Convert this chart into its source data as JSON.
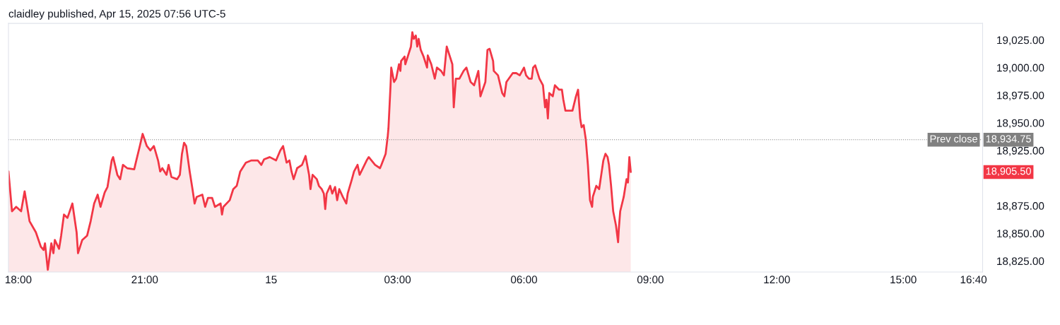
{
  "chart_data": {
    "type": "area",
    "title": "claidley published, Apr 15, 2025 07:56 UTC-5",
    "xlim": [
      "2025-04-14T17:46",
      "2025-04-15T16:53"
    ],
    "ylim": [
      18815,
      19040
    ],
    "xticks": [
      {
        "value": "2025-04-14T18:00",
        "label": "18:00"
      },
      {
        "value": "2025-04-14T21:00",
        "label": "21:00"
      },
      {
        "value": "2025-04-15T00:00",
        "label": "15"
      },
      {
        "value": "2025-04-15T03:00",
        "label": "03:00"
      },
      {
        "value": "2025-04-15T06:00",
        "label": "06:00"
      },
      {
        "value": "2025-04-15T09:00",
        "label": "09:00"
      },
      {
        "value": "2025-04-15T12:00",
        "label": "12:00"
      },
      {
        "value": "2025-04-15T15:00",
        "label": "15:00"
      },
      {
        "value": "2025-04-15T16:40",
        "label": "16:40"
      }
    ],
    "yticks": [
      {
        "value": 18825,
        "label": "18,825.00"
      },
      {
        "value": 18850,
        "label": "18,850.00"
      },
      {
        "value": 18875,
        "label": "18,875.00"
      },
      {
        "value": 18925,
        "label": "18,925.00"
      },
      {
        "value": 18950,
        "label": "18,950.00"
      },
      {
        "value": 18975,
        "label": "18,975.00"
      },
      {
        "value": 19000,
        "label": "19,000.00"
      },
      {
        "value": 19025,
        "label": "19,025.00"
      }
    ],
    "ref_lines": [
      {
        "axis": "y",
        "value": 18934.75,
        "label": "Prev close",
        "color": "#808080",
        "line_style": "dotted"
      }
    ],
    "annotations": [
      "18,934.75",
      "18,905.50"
    ],
    "grid": false,
    "legend": false,
    "series": [
      {
        "color": "#f23645",
        "x": [
          "2025-04-14T17:46",
          "2025-04-14T17:51",
          "2025-04-14T17:57",
          "2025-04-14T18:04",
          "2025-04-14T18:09",
          "2025-04-14T18:16",
          "2025-04-14T18:25",
          "2025-04-14T18:32",
          "2025-04-14T18:36",
          "2025-04-14T18:38",
          "2025-04-14T18:42",
          "2025-04-14T18:47",
          "2025-04-14T18:50",
          "2025-04-14T18:52",
          "2025-04-14T18:58",
          "2025-04-14T19:01",
          "2025-04-14T19:05",
          "2025-04-14T19:10",
          "2025-04-14T19:17",
          "2025-04-14T19:23",
          "2025-04-14T19:25",
          "2025-04-14T19:31",
          "2025-04-14T19:38",
          "2025-04-14T19:43",
          "2025-04-14T19:48",
          "2025-04-14T19:53",
          "2025-04-14T19:57",
          "2025-04-14T20:03",
          "2025-04-14T20:07",
          "2025-04-14T20:13",
          "2025-04-14T20:15",
          "2025-04-14T20:21",
          "2025-04-14T20:25",
          "2025-04-14T20:29",
          "2025-04-14T20:35",
          "2025-04-14T20:45",
          "2025-04-14T20:48",
          "2025-04-14T20:53",
          "2025-04-14T20:57",
          "2025-04-14T21:03",
          "2025-04-14T21:08",
          "2025-04-14T21:13",
          "2025-04-14T21:19",
          "2025-04-14T21:22",
          "2025-04-14T21:25",
          "2025-04-14T21:31",
          "2025-04-14T21:34",
          "2025-04-14T21:38",
          "2025-04-14T21:46",
          "2025-04-14T21:50",
          "2025-04-14T21:53",
          "2025-04-14T21:56",
          "2025-04-14T21:59",
          "2025-04-14T22:04",
          "2025-04-14T22:08",
          "2025-04-14T22:11",
          "2025-04-14T22:14",
          "2025-04-14T22:22",
          "2025-04-14T22:26",
          "2025-04-14T22:30",
          "2025-04-14T22:36",
          "2025-04-14T22:40",
          "2025-04-14T22:48",
          "2025-04-14T22:50",
          "2025-04-14T22:52",
          "2025-04-14T23:01",
          "2025-04-14T23:06",
          "2025-04-14T23:11",
          "2025-04-14T23:16",
          "2025-04-14T23:24",
          "2025-04-14T23:32",
          "2025-04-14T23:41",
          "2025-04-14T23:46",
          "2025-04-14T23:50",
          "2025-04-14T23:58",
          "2025-04-15T00:07",
          "2025-04-15T00:13",
          "2025-04-15T00:17",
          "2025-04-15T00:22",
          "2025-04-15T00:26",
          "2025-04-15T00:29",
          "2025-04-15T00:32",
          "2025-04-15T00:37",
          "2025-04-15T00:44",
          "2025-04-15T00:49",
          "2025-04-15T00:54",
          "2025-04-15T00:56",
          "2025-04-15T00:59",
          "2025-04-15T01:05",
          "2025-04-15T01:08",
          "2025-04-15T01:12",
          "2025-04-15T01:15",
          "2025-04-15T01:17",
          "2025-04-15T01:19",
          "2025-04-15T01:24",
          "2025-04-15T01:27",
          "2025-04-15T01:31",
          "2025-04-15T01:34",
          "2025-04-15T01:37",
          "2025-04-15T01:42",
          "2025-04-15T01:47",
          "2025-04-15T01:49",
          "2025-04-15T01:55",
          "2025-04-15T01:58",
          "2025-04-15T02:03",
          "2025-04-15T02:06",
          "2025-04-15T02:16",
          "2025-04-15T02:19",
          "2025-04-15T02:28",
          "2025-04-15T02:35",
          "2025-04-15T02:37",
          "2025-04-15T02:43",
          "2025-04-15T02:46",
          "2025-04-15T02:47",
          "2025-04-15T02:50",
          "2025-04-15T02:51",
          "2025-04-15T02:55",
          "2025-04-15T02:58",
          "2025-04-15T03:02",
          "2025-04-15T03:04",
          "2025-04-15T03:05",
          "2025-04-15T03:10",
          "2025-04-15T03:11",
          "2025-04-15T03:16",
          "2025-04-15T03:19",
          "2025-04-15T03:21",
          "2025-04-15T03:23",
          "2025-04-15T03:26",
          "2025-04-15T03:28",
          "2025-04-15T03:30",
          "2025-04-15T03:33",
          "2025-04-15T03:37",
          "2025-04-15T03:42",
          "2025-04-15T03:43",
          "2025-04-15T03:48",
          "2025-04-15T03:53",
          "2025-04-15T03:56",
          "2025-04-15T04:02",
          "2025-04-15T04:06",
          "2025-04-15T04:10",
          "2025-04-15T04:13",
          "2025-04-15T04:18",
          "2025-04-15T04:20",
          "2025-04-15T04:23",
          "2025-04-15T04:28",
          "2025-04-15T04:34",
          "2025-04-15T04:38",
          "2025-04-15T04:44",
          "2025-04-15T04:49",
          "2025-04-15T04:55",
          "2025-04-15T04:58",
          "2025-04-15T05:05",
          "2025-04-15T05:08",
          "2025-04-15T05:11",
          "2025-04-15T05:16",
          "2025-04-15T05:17",
          "2025-04-15T05:23",
          "2025-04-15T05:29",
          "2025-04-15T05:32",
          "2025-04-15T05:35",
          "2025-04-15T05:44",
          "2025-04-15T05:49",
          "2025-04-15T05:54",
          "2025-04-15T06:00",
          "2025-04-15T06:03",
          "2025-04-15T06:07",
          "2025-04-15T06:11",
          "2025-04-15T06:13",
          "2025-04-15T06:16",
          "2025-04-15T06:22",
          "2025-04-15T06:27",
          "2025-04-15T06:30",
          "2025-04-15T06:32",
          "2025-04-15T06:34",
          "2025-04-15T06:36",
          "2025-04-15T06:41",
          "2025-04-15T06:44",
          "2025-04-15T06:50",
          "2025-04-15T06:54",
          "2025-04-15T06:56",
          "2025-04-15T06:59",
          "2025-04-15T07:04",
          "2025-04-15T07:09",
          "2025-04-15T07:14",
          "2025-04-15T07:17",
          "2025-04-15T07:20",
          "2025-04-15T07:22",
          "2025-04-15T07:25",
          "2025-04-15T07:28",
          "2025-04-15T07:31",
          "2025-04-15T07:34",
          "2025-04-15T07:37",
          "2025-04-15T07:38",
          "2025-04-15T07:43",
          "2025-04-15T07:47",
          "2025-04-15T07:50",
          "2025-04-15T07:53",
          "2025-04-15T07:56",
          "2025-04-15T07:59",
          "2025-04-15T08:01",
          "2025-04-15T08:04",
          "2025-04-15T08:07",
          "2025-04-15T08:11",
          "2025-04-15T08:14",
          "2025-04-15T08:15",
          "2025-04-15T08:17",
          "2025-04-15T08:22",
          "2025-04-15T08:26",
          "2025-04-15T08:28",
          "2025-04-15T08:30",
          "2025-04-15T08:32"
        ],
        "values": [
          18906,
          18870,
          18874,
          18870,
          18888,
          18861,
          18851,
          18838,
          18835,
          18841,
          18817,
          18841,
          18832,
          18844,
          18836,
          18848,
          18867,
          18864,
          18877,
          18851,
          18832,
          18844,
          18848,
          18861,
          18877,
          18885,
          18874,
          18887,
          18892,
          18916,
          18919,
          18903,
          18899,
          18912,
          18909,
          18908,
          18916,
          18929,
          18940,
          18929,
          18925,
          18929,
          18916,
          18906,
          18909,
          18903,
          18912,
          18901,
          18899,
          18903,
          18922,
          18932,
          18929,
          18906,
          18890,
          18877,
          18883,
          18885,
          18874,
          18882,
          18882,
          18874,
          18877,
          18867,
          18874,
          18880,
          18890,
          18893,
          18906,
          18914,
          18916,
          18916,
          18912,
          18917,
          18919,
          18916,
          18925,
          18929,
          18914,
          18916,
          18906,
          18899,
          18909,
          18912,
          18920,
          18903,
          18890,
          18903,
          18899,
          18893,
          18890,
          18886,
          18872,
          18886,
          18893,
          18886,
          18892,
          18880,
          18890,
          18883,
          18877,
          18886,
          18899,
          18906,
          18912,
          18903,
          18916,
          18919,
          18912,
          18909,
          18912,
          18922,
          18938,
          18945,
          18984,
          19000,
          18987,
          18990,
          19003,
          18997,
          19006,
          19010,
          19003,
          19013,
          19019,
          19032,
          19026,
          19029,
          19019,
          19026,
          19016,
          19010,
          19000,
          19011,
          19003,
          18990,
          19000,
          18997,
          18993,
          19019,
          19013,
          19003,
          18964,
          18990,
          18990,
          18997,
          19000,
          18987,
          18984,
          18997,
          18974,
          18987,
          19016,
          19017,
          19006,
          18997,
          18993,
          18977,
          18974,
          18987,
          18995,
          18995,
          18993,
          19000,
          18993,
          18990,
          18990,
          19000,
          19002,
          18990,
          18984,
          18964,
          18971,
          18954,
          18977,
          18974,
          18984,
          18980,
          18980,
          18971,
          18961,
          18961,
          18961,
          18974,
          18980,
          18954,
          18946,
          18948,
          18935,
          18912,
          18880,
          18874,
          18883,
          18893,
          18890,
          18903,
          18916,
          18922,
          18919,
          18912,
          18893,
          18870,
          18857,
          18842,
          18854,
          18870,
          18883,
          18899,
          18896,
          18919,
          18905.5
        ]
      }
    ]
  }
}
